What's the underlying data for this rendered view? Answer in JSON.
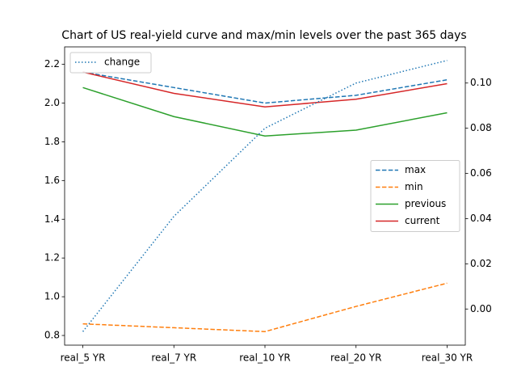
{
  "chart_data": {
    "type": "line",
    "title": "Chart of US real-yield curve and max/min levels over the past 365 days",
    "categories": [
      "real_5 YR",
      "real_7 YR",
      "real_10 YR",
      "real_20 YR",
      "real_30 YR"
    ],
    "ylim": [
      0.75,
      2.29
    ],
    "yticks": [
      0.8,
      {
        "value": 1,
        "label": "1.0"
      },
      1.2,
      1.4,
      1.6,
      1.8,
      {
        "value": 2,
        "label": "2.0"
      },
      2.2
    ],
    "y2lim": [
      -0.016,
      0.116
    ],
    "y2ticks": [
      {
        "value": 0,
        "label": "0.00"
      },
      {
        "value": 0.02,
        "label": "0.02"
      },
      {
        "value": 0.04,
        "label": "0.04"
      },
      {
        "value": 0.06,
        "label": "0.06"
      },
      {
        "value": 0.08,
        "label": "0.08"
      },
      {
        "value": 0.1,
        "label": "0.10"
      }
    ],
    "series": [
      {
        "name": "max",
        "color": "#1f77b4",
        "linestyle": "dashed",
        "values": [
          2.16,
          2.08,
          2.0,
          2.04,
          2.12
        ]
      },
      {
        "name": "min",
        "color": "#ff7f0e",
        "linestyle": "dashed",
        "values": [
          0.86,
          0.84,
          0.82,
          0.95,
          1.07
        ]
      },
      {
        "name": "previous",
        "color": "#2ca02c",
        "linestyle": "solid",
        "values": [
          2.08,
          1.93,
          1.83,
          1.86,
          1.95
        ]
      },
      {
        "name": "current",
        "color": "#d62728",
        "linestyle": "solid",
        "values": [
          2.16,
          2.05,
          1.98,
          2.02,
          2.1
        ]
      },
      {
        "name": "change",
        "color": "#1f77b4",
        "linestyle": "dotted",
        "axis": "y2",
        "values": [
          -0.01,
          0.041,
          0.08,
          0.1,
          0.11
        ]
      }
    ],
    "legend": "center right",
    "legend2": "upper left"
  }
}
